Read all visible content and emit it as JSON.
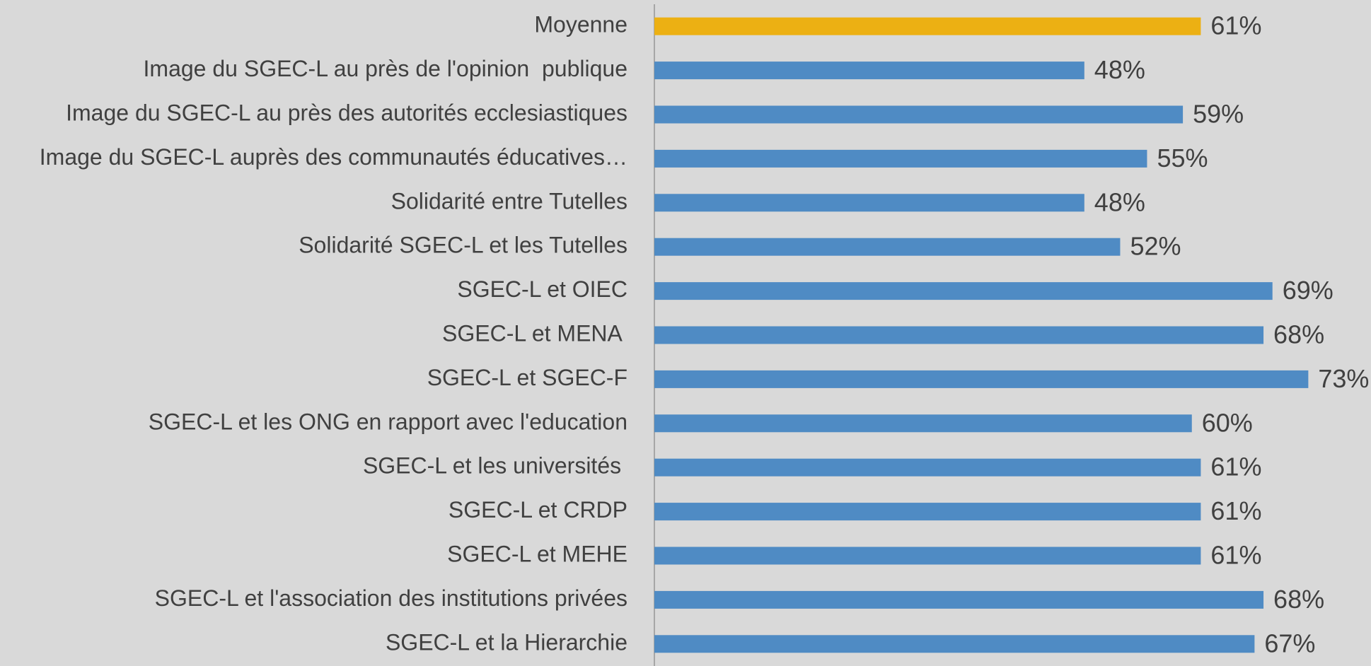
{
  "chart_data": {
    "type": "barh",
    "categories": [
      "Moyenne",
      "Image du SGEC-L au près de l'opinion  publique",
      "Image du SGEC-L au près des autorités ecclesiastiques",
      "Image du SGEC-L auprès des communautés éducatives…",
      "Solidarité entre Tutelles",
      "Solidarité SGEC-L et les Tutelles",
      "SGEC-L et OIEC",
      "SGEC-L et MENA ",
      "SGEC-L et SGEC-F",
      "SGEC-L et les ONG en rapport avec l'education",
      "SGEC-L et les universités ",
      "SGEC-L et CRDP",
      "SGEC-L et MEHE",
      "SGEC-L et l'association des institutions privées",
      "SGEC-L et la Hierarchie"
    ],
    "values": [
      61,
      48,
      59,
      55,
      48,
      52,
      69,
      68,
      73,
      60,
      61,
      61,
      61,
      68,
      67
    ],
    "value_labels": [
      "61%",
      "48%",
      "59%",
      "55%",
      "48%",
      "52%",
      "69%",
      "68%",
      "73%",
      "60%",
      "61%",
      "61%",
      "61%",
      "68%",
      "67%"
    ],
    "colors": [
      "#ecb013",
      "#4f8bc4",
      "#4f8bc4",
      "#4f8bc4",
      "#4f8bc4",
      "#4f8bc4",
      "#4f8bc4",
      "#4f8bc4",
      "#4f8bc4",
      "#4f8bc4",
      "#4f8bc4",
      "#4f8bc4",
      "#4f8bc4",
      "#4f8bc4",
      "#4f8bc4"
    ],
    "xlim": [
      0,
      80
    ],
    "grid": false
  }
}
